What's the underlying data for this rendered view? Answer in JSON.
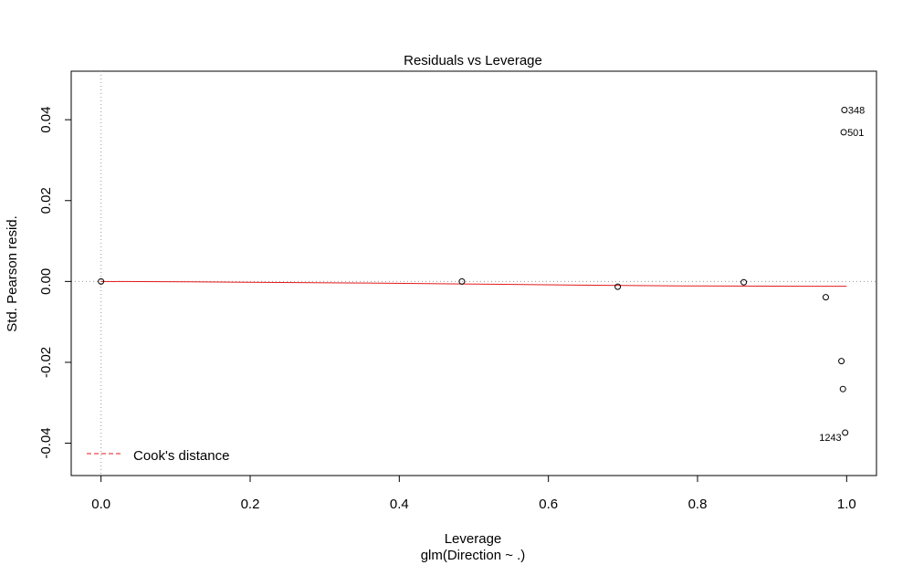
{
  "chart_data": {
    "type": "scatter",
    "title": "Residuals vs Leverage",
    "xlabel": "Leverage",
    "xlabel_sub": "glm(Direction ~ .)",
    "ylabel": "Std. Pearson resid.",
    "xlim": [
      -0.04,
      1.04
    ],
    "ylim": [
      -0.048,
      0.052
    ],
    "x_ticks": [
      0.0,
      0.2,
      0.4,
      0.6,
      0.8,
      1.0
    ],
    "x_tick_labels": [
      "0.0",
      "0.2",
      "0.4",
      "0.6",
      "0.8",
      "1.0"
    ],
    "y_ticks": [
      -0.04,
      -0.02,
      0.0,
      0.02,
      0.04
    ],
    "y_tick_labels": [
      "-0.04",
      "-0.02",
      "0.00",
      "0.02",
      "0.04"
    ],
    "points": [
      {
        "x": 0.0,
        "y": 0.0
      },
      {
        "x": 0.484,
        "y": 0.0
      },
      {
        "x": 0.693,
        "y": -0.0013
      },
      {
        "x": 0.862,
        "y": -0.0002
      },
      {
        "x": 0.972,
        "y": -0.0039
      },
      {
        "x": 0.993,
        "y": -0.0197
      },
      {
        "x": 0.995,
        "y": -0.0266
      },
      {
        "x": 0.997,
        "y": 0.0424,
        "label": "348"
      },
      {
        "x": 0.996,
        "y": 0.0369,
        "label": "501"
      },
      {
        "x": 0.998,
        "y": -0.0374,
        "label": "1243"
      }
    ],
    "smooth_line": {
      "color": "#e41a1c",
      "x": [
        0.0,
        0.12,
        0.36,
        0.54,
        0.64,
        0.78,
        1.0
      ],
      "y": [
        0.0,
        -0.0001,
        -0.0004,
        -0.0007,
        -0.0009,
        -0.0011,
        -0.0012
      ]
    },
    "legend": {
      "position": "bottom-left",
      "entries": [
        {
          "label": "Cook's distance",
          "color": "#e41a1c",
          "style": "dashed"
        }
      ]
    },
    "reference_lines": {
      "h": 0,
      "v": 0,
      "style": "dotted",
      "color": "#999999"
    }
  }
}
